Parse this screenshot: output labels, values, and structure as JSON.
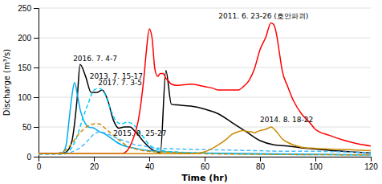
{
  "chart_data": {
    "type": "line",
    "xlabel": "Time (hr)",
    "ylabel": "Discharge (m³/s)",
    "xlim": [
      0,
      120
    ],
    "ylim": [
      0,
      250
    ],
    "xticks": [
      0,
      20,
      40,
      60,
      80,
      100,
      120
    ],
    "yticks": [
      0,
      50,
      100,
      150,
      200,
      250
    ],
    "grid": true,
    "series": [
      {
        "color": "#000000",
        "line_style": "solid",
        "x": [
          0,
          8,
          10,
          12,
          14,
          15,
          17,
          19,
          21,
          23,
          25,
          27,
          29,
          31,
          33,
          35,
          38,
          41,
          43,
          44,
          46,
          48,
          50,
          55,
          60,
          65,
          70,
          75,
          80,
          85,
          90,
          95,
          100,
          110,
          120
        ],
        "values": [
          5,
          5,
          8,
          25,
          100,
          155,
          135,
          108,
          108,
          112,
          95,
          62,
          48,
          50,
          50,
          42,
          25,
          12,
          8,
          6,
          145,
          88,
          87,
          85,
          80,
          72,
          57,
          42,
          27,
          20,
          18,
          15,
          13,
          9,
          6
        ]
      },
      {
        "color": "#00aaee",
        "line_style": "solid",
        "x": [
          0,
          8,
          9,
          10,
          11,
          12,
          13,
          14,
          15,
          16,
          17,
          18,
          20,
          22,
          24,
          26,
          28,
          30,
          35,
          40,
          50,
          60,
          80,
          120
        ],
        "values": [
          5,
          5,
          8,
          20,
          60,
          100,
          125,
          105,
          80,
          65,
          55,
          50,
          48,
          42,
          38,
          32,
          25,
          20,
          14,
          10,
          7,
          6,
          5,
          3
        ]
      },
      {
        "color": "#00ccff",
        "line_style": "dashed",
        "x": [
          0,
          8,
          10,
          12,
          14,
          16,
          18,
          20,
          22,
          24,
          26,
          28,
          30,
          32,
          34,
          36,
          38,
          40,
          42,
          45,
          50,
          60,
          80,
          120
        ],
        "values": [
          5,
          5,
          7,
          15,
          35,
          65,
          90,
          112,
          115,
          105,
          80,
          60,
          55,
          58,
          55,
          45,
          32,
          20,
          14,
          10,
          8,
          6,
          4,
          3
        ]
      },
      {
        "color": "#cc8800",
        "line_style": "dashed",
        "x": [
          0,
          6,
          8,
          10,
          12,
          14,
          16,
          18,
          20,
          22,
          24,
          26,
          28,
          30,
          32,
          35,
          40,
          50,
          60,
          80,
          120
        ],
        "values": [
          5,
          5,
          7,
          12,
          22,
          35,
          45,
          52,
          55,
          55,
          48,
          40,
          32,
          25,
          18,
          13,
          9,
          7,
          5,
          4,
          3
        ]
      },
      {
        "color": "#44bbff",
        "line_style": "dashed",
        "x": [
          0,
          8,
          10,
          12,
          15,
          18,
          20,
          22,
          24,
          26,
          28,
          30,
          32,
          35,
          38,
          40,
          45,
          50,
          60,
          70,
          80,
          90,
          100,
          110,
          120
        ],
        "values": [
          4,
          4,
          5,
          8,
          15,
          28,
          38,
          42,
          40,
          36,
          32,
          28,
          25,
          20,
          18,
          16,
          14,
          13,
          12,
          11,
          10,
          9,
          9,
          8,
          7
        ]
      },
      {
        "color": "#ff0000",
        "line_style": "solid",
        "x": [
          0,
          5,
          10,
          20,
          30,
          32,
          34,
          36,
          38,
          39,
          40,
          41,
          42,
          43,
          44,
          45,
          46,
          47,
          48,
          50,
          55,
          58,
          60,
          63,
          65,
          68,
          70,
          72,
          74,
          76,
          78,
          80,
          82,
          84,
          85,
          86,
          87,
          88,
          90,
          92,
          95,
          98,
          100,
          105,
          110,
          115,
          120
        ],
        "values": [
          5,
          5,
          5,
          5,
          5,
          10,
          28,
          60,
          130,
          180,
          215,
          200,
          148,
          135,
          140,
          140,
          132,
          127,
          122,
          120,
          122,
          120,
          118,
          115,
          112,
          112,
          112,
          112,
          118,
          128,
          148,
          180,
          200,
          225,
          222,
          205,
          175,
          145,
          118,
          95,
          72,
          57,
          46,
          36,
          28,
          22,
          18
        ]
      },
      {
        "color": "#cc8800",
        "line_style": "solid",
        "x": [
          0,
          10,
          20,
          30,
          40,
          50,
          55,
          58,
          60,
          62,
          65,
          68,
          70,
          72,
          74,
          76,
          77,
          78,
          79,
          80,
          81,
          82,
          83,
          84,
          85,
          86,
          87,
          88,
          90,
          92,
          95,
          100,
          110,
          120
        ],
        "values": [
          5,
          5,
          5,
          5,
          5,
          5,
          5,
          6,
          8,
          12,
          20,
          30,
          38,
          42,
          44,
          42,
          42,
          40,
          42,
          44,
          45,
          46,
          48,
          50,
          47,
          42,
          36,
          30,
          24,
          20,
          16,
          14,
          12,
          10
        ]
      }
    ],
    "annotations": [
      {
        "text": "2016. 7. 4-7",
        "x": 12.5,
        "y": 158
      },
      {
        "text": "2013. 7. 15-17",
        "x": 18.5,
        "y": 128
      },
      {
        "text": "2017. 7. 3-5",
        "x": 21.5,
        "y": 118
      },
      {
        "text": "2015. 8. 25-27",
        "x": 27,
        "y": 33
      },
      {
        "text": "2011. 6. 23-26 (호안파괴)",
        "x": 65,
        "y": 230
      },
      {
        "text": "2014. 8. 18-22",
        "x": 80,
        "y": 55
      }
    ]
  }
}
